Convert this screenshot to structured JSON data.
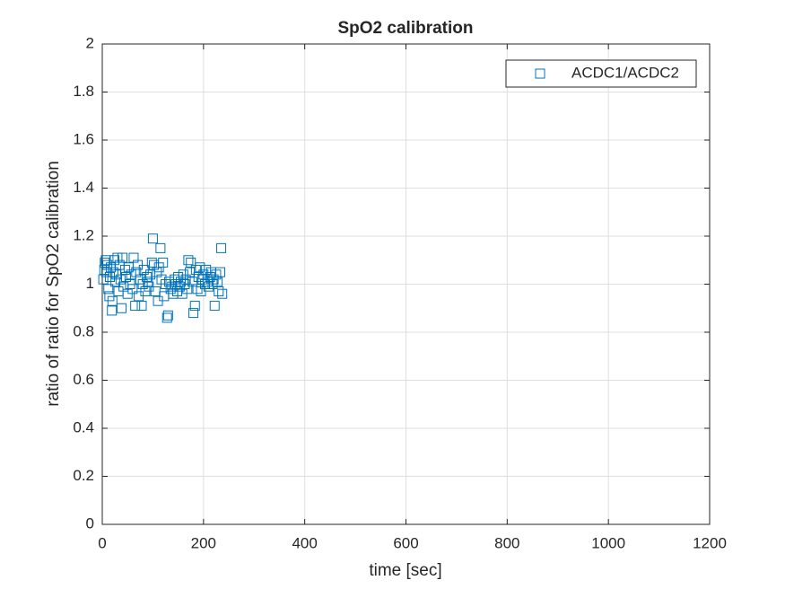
{
  "chart_data": {
    "type": "scatter",
    "title": "SpO2 calibration",
    "x_label": "time [sec]",
    "y_label": "ratio of ratio for SpO2 calibration",
    "series": [
      {
        "name": "ACDC1/ACDC2",
        "color": "#0072bd",
        "marker": "square",
        "x": [
          2,
          4,
          5,
          7,
          8,
          10,
          12,
          14,
          15,
          17,
          19,
          20,
          22,
          24,
          26,
          28,
          30,
          32,
          34,
          36,
          38,
          40,
          42,
          45,
          47,
          50,
          52,
          55,
          57,
          60,
          62,
          65,
          67,
          70,
          72,
          75,
          78,
          80,
          82,
          85,
          88,
          90,
          92,
          95,
          98,
          100,
          102,
          105,
          108,
          110,
          112,
          115,
          117,
          120,
          122,
          125,
          128,
          130,
          132,
          135,
          138,
          140,
          143,
          145,
          148,
          150,
          153,
          155,
          158,
          160,
          163,
          165,
          168,
          170,
          173,
          175,
          178,
          180,
          183,
          185,
          188,
          190,
          193,
          195,
          198,
          200,
          203,
          205,
          208,
          210,
          213,
          215,
          218,
          220,
          222,
          225,
          228,
          230,
          233,
          235,
          237
        ],
        "values": [
          1.02,
          1.06,
          1.09,
          1.1,
          1.05,
          1.08,
          0.98,
          0.95,
          1.03,
          1.07,
          0.89,
          0.93,
          1.05,
          1.1,
          1.01,
          1.04,
          1.11,
          0.97,
          1.08,
          1.02,
          0.9,
          1.11,
          0.99,
          1.06,
          1.03,
          0.96,
          1.07,
          1.0,
          1.04,
          0.98,
          1.11,
          0.91,
          1.05,
          1.08,
          0.95,
          1.02,
          0.91,
          1.0,
          1.06,
          0.97,
          1.03,
          1.01,
          0.99,
          1.04,
          1.09,
          1.19,
          1.08,
          0.97,
          1.05,
          0.93,
          1.07,
          1.15,
          1.02,
          1.09,
          0.95,
          1.0,
          0.86,
          0.87,
          1.01,
          0.98,
          0.99,
          0.96,
          1.02,
          1.0,
          0.97,
          1.03,
          0.99,
          1.01,
          0.96,
          1.04,
          1.0,
          1.02,
          0.98,
          1.1,
          1.05,
          1.09,
          1.01,
          0.88,
          0.91,
          1.06,
          0.98,
          1.03,
          1.07,
          0.97,
          1.02,
          1.04,
          1.0,
          1.06,
          1.01,
          0.99,
          1.03,
          1.05,
          1.0,
          1.02,
          0.91,
          1.04,
          1.01,
          0.97,
          1.05,
          1.15,
          0.96
        ]
      }
    ],
    "xlim": [
      0,
      1200
    ],
    "xticks": [
      0,
      200,
      400,
      600,
      800,
      1000,
      1200
    ],
    "ylim": [
      0,
      2
    ],
    "yticks": [
      0,
      0.2,
      0.4,
      0.6,
      0.8,
      1,
      1.2,
      1.4,
      1.6,
      1.8,
      2
    ],
    "grid": true,
    "legend": "top-right"
  }
}
